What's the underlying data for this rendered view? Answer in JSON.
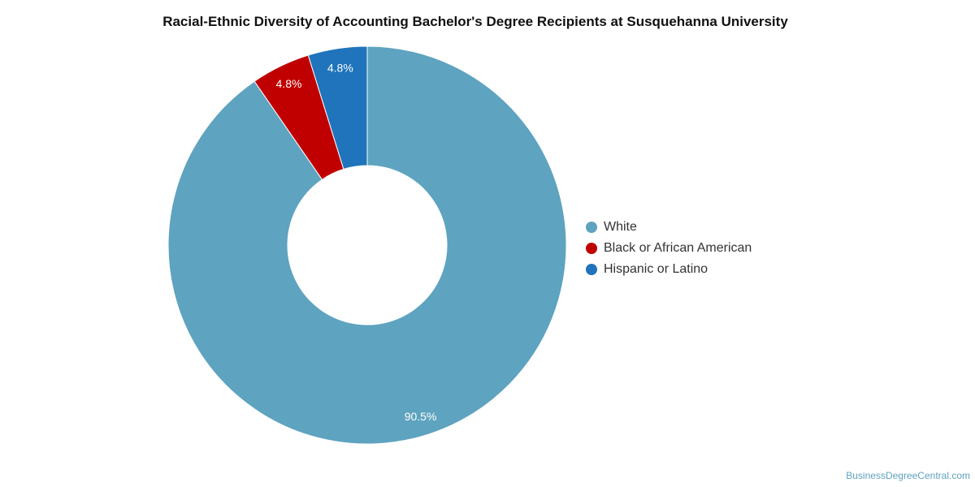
{
  "chart_data": {
    "type": "pie",
    "title": "Racial-Ethnic Diversity of Accounting Bachelor's Degree Recipients at Susquehanna University",
    "donut": true,
    "legend_position": "right",
    "categories": [
      "White",
      "Black or African American",
      "Hispanic or Latino"
    ],
    "values": [
      90.5,
      4.8,
      4.8
    ],
    "labels": [
      "90.5%",
      "4.8%",
      "4.8%"
    ],
    "colors": [
      "#5ea3c0",
      "#c00000",
      "#1f74bb"
    ]
  },
  "source": "BusinessDegreeCentral.com"
}
